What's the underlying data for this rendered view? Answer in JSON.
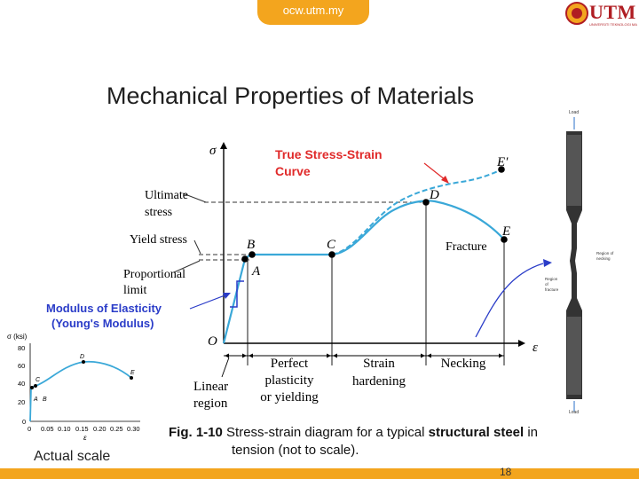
{
  "header": {
    "site": "ocw.utm.my",
    "logo_text": "UTM",
    "logo_subtext": "UNIVERSITI TEKNOLOGI MALAYSIA"
  },
  "title": "Mechanical Properties of Materials",
  "diagram": {
    "sigma": "σ",
    "epsilon": "ε",
    "origin": "O",
    "points": {
      "A": "A",
      "B": "B",
      "C": "C",
      "D": "D",
      "E": "E",
      "E_prime": "E′"
    },
    "labels": {
      "ultimate_1": "Ultimate",
      "ultimate_2": "stress",
      "yield": "Yield stress",
      "prop_1": "Proportional",
      "prop_2": "limit",
      "fracture": "Fracture",
      "true_1": "True Stress-Strain",
      "true_2": "Curve",
      "modulus_1": "Modulus of Elasticity",
      "modulus_2": "(Young's Modulus)"
    },
    "regions": {
      "linear_1": "Linear",
      "linear_2": "region",
      "plastic_1": "Perfect",
      "plastic_2": "plasticity",
      "plastic_3": "or yielding",
      "hard_1": "Strain",
      "hard_2": "hardening",
      "necking": "Necking"
    },
    "colors": {
      "curve": "#3aa8d8",
      "accent_red": "#e02a2a",
      "modulus_blue": "#2a3cc8"
    }
  },
  "photo": {
    "load_top": "Load",
    "load_bottom": "Load",
    "region_necking": "Region of necking",
    "region_fracture": "Region of fracture"
  },
  "inset": {
    "ylabel": "σ (ksi)",
    "xlabel": "ε",
    "yticks": [
      "80",
      "60",
      "40",
      "20",
      "0"
    ],
    "xticks": [
      "0",
      "0.05",
      "0.10",
      "0.15",
      "0.20",
      "0.25",
      "0.30"
    ],
    "points": {
      "A": "A",
      "B": "B",
      "C": "C",
      "D": "D",
      "E": "E"
    }
  },
  "caption": {
    "fig": "Fig. 1-10",
    "text1": "Stress-strain diagram for a typical",
    "bold": "structural steel",
    "text2": "in",
    "line2": "tension (not to scale)."
  },
  "actual_scale": "Actual scale",
  "page_number": "18"
}
